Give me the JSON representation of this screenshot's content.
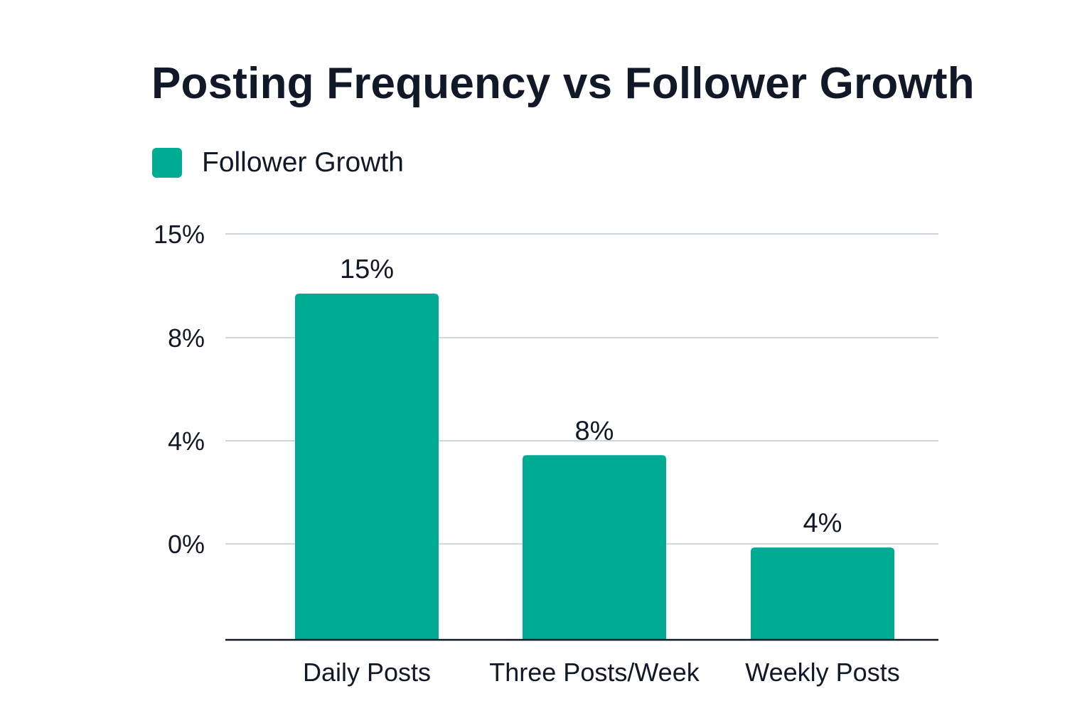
{
  "chart_data": {
    "type": "bar",
    "title": "Posting Frequency vs Follower Growth",
    "categories": [
      "Daily Posts",
      "Three Posts/Week",
      "Weekly Posts"
    ],
    "series": [
      {
        "name": "Follower Growth",
        "values": [
          15,
          8,
          4
        ],
        "value_labels": [
          "15%",
          "8%",
          "4%"
        ]
      }
    ],
    "y_ticks": [
      {
        "label": "15%"
      },
      {
        "label": "8%"
      },
      {
        "label": "4%"
      },
      {
        "label": "0%"
      }
    ],
    "xlabel": "",
    "ylabel": "",
    "grid": true,
    "legend_position": "top-left"
  },
  "colors": {
    "bar": "#00ab94",
    "grid": "#cdd5df",
    "axis": "#111827"
  }
}
